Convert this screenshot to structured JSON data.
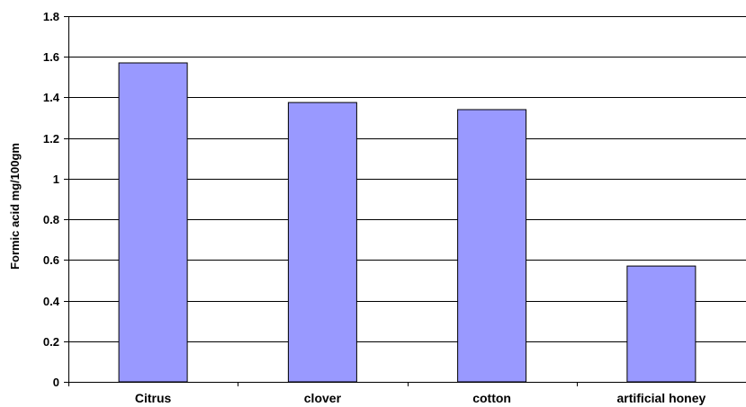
{
  "chart_data": {
    "type": "bar",
    "title": "",
    "xlabel": "",
    "ylabel": "Formic acid mg/100gm",
    "categories": [
      "Citrus",
      "clover",
      "cotton",
      "artificial honey"
    ],
    "values": [
      1.57,
      1.375,
      1.34,
      0.57
    ],
    "ylim": [
      0,
      1.8
    ],
    "yticks": [
      0,
      0.2,
      0.4,
      0.6,
      0.8,
      1,
      1.2,
      1.4,
      1.6,
      1.8
    ],
    "ytick_labels": [
      "0",
      "0.2",
      "0.4",
      "0.6",
      "0.8",
      "1",
      "1.2",
      "1.4",
      "1.6",
      "1.8"
    ],
    "grid": true,
    "legend": "none",
    "colors": {
      "bar_fill": "#9999ff",
      "bar_stroke": "#000000",
      "grid": "#000000",
      "axis": "#000000"
    }
  }
}
